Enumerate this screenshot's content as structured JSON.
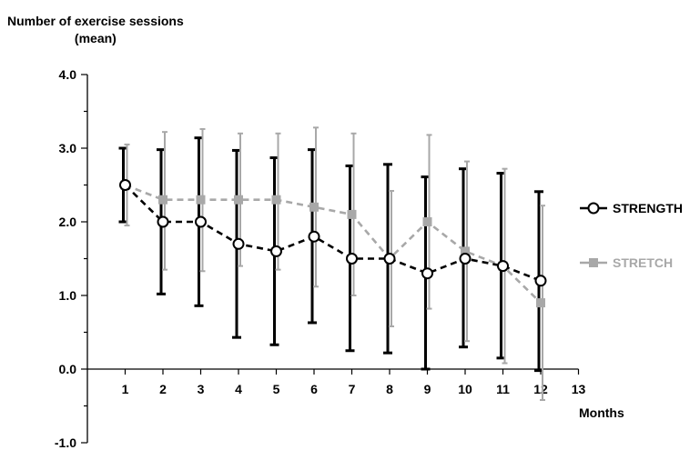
{
  "chart_data": {
    "type": "line",
    "ylabel_line1": "Number of exercise sessions",
    "ylabel_line2": "(mean)",
    "xlabel": "Months",
    "ylim": [
      -1.0,
      4.0
    ],
    "xlim": [
      0,
      13
    ],
    "y_ticks": [
      "-1.0",
      "0.0",
      "1.0",
      "2.0",
      "3.0",
      "4.0"
    ],
    "x_ticks": [
      "1",
      "2",
      "3",
      "4",
      "5",
      "6",
      "7",
      "8",
      "9",
      "10",
      "11",
      "12",
      "13"
    ],
    "x": [
      1,
      2,
      3,
      4,
      5,
      6,
      7,
      8,
      9,
      10,
      11,
      12
    ],
    "series": [
      {
        "name": "STRENGTH",
        "color": "#000000",
        "marker": "open-circle",
        "values": [
          2.5,
          2.0,
          2.0,
          1.7,
          1.6,
          1.8,
          1.5,
          1.5,
          1.3,
          1.5,
          1.4,
          1.2
        ],
        "err_low": [
          2.0,
          1.02,
          0.86,
          0.43,
          0.33,
          0.63,
          0.25,
          0.22,
          0.0,
          0.3,
          0.15,
          -0.02
        ],
        "err_high": [
          3.0,
          2.98,
          3.14,
          2.97,
          2.87,
          2.98,
          2.76,
          2.78,
          2.61,
          2.72,
          2.66,
          2.41
        ]
      },
      {
        "name": "STRETCH",
        "color": "#a8a8a8",
        "marker": "filled-square",
        "values": [
          2.5,
          2.3,
          2.3,
          2.3,
          2.3,
          2.2,
          2.1,
          1.5,
          2.0,
          1.6,
          1.4,
          0.9
        ],
        "err_low": [
          1.95,
          1.35,
          1.33,
          1.4,
          1.35,
          1.12,
          1.0,
          0.58,
          0.82,
          0.38,
          0.08,
          -0.42
        ],
        "err_high": [
          3.05,
          3.22,
          3.26,
          3.2,
          3.2,
          3.28,
          3.2,
          2.42,
          3.18,
          2.82,
          2.72,
          2.22
        ]
      }
    ],
    "legend_position": "right",
    "grid": false
  }
}
